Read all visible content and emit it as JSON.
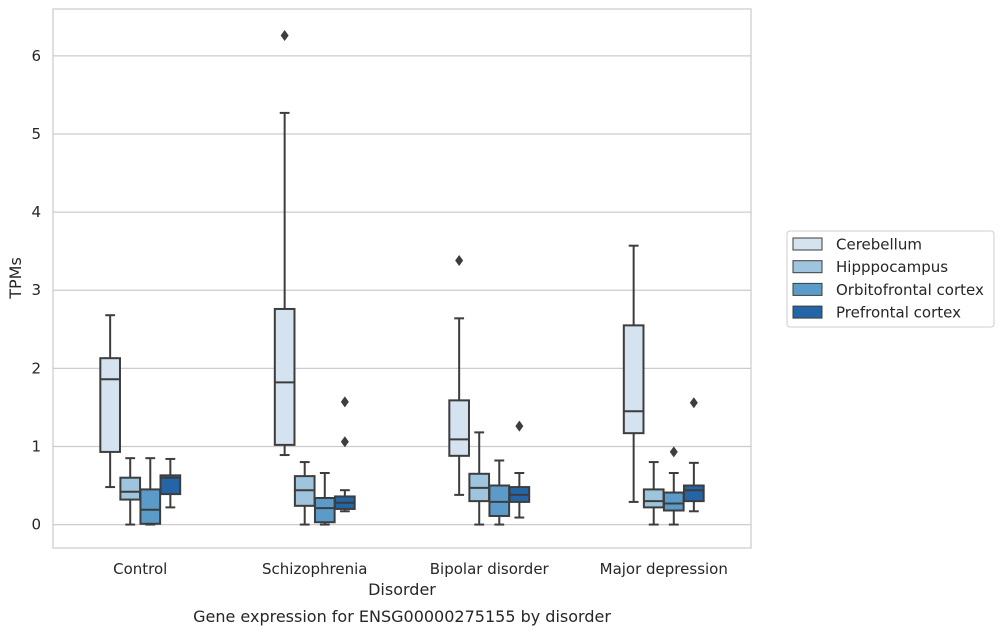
{
  "caption": "Gene expression for ENSG00000275155 by disorder",
  "chart_data": {
    "type": "box",
    "xlabel": "Disorder",
    "ylabel": "TPMs",
    "ylim": [
      -0.3,
      6.6
    ],
    "yticks": [
      0,
      1,
      2,
      3,
      4,
      5,
      6
    ],
    "grid": "horizontal",
    "legend_position": "right",
    "categories": [
      "Control",
      "Schizophrenia",
      "Bipolar disorder",
      "Major depression"
    ],
    "series": [
      {
        "name": "Cerebellum",
        "color": "#d5e3f1",
        "boxes": [
          {
            "whislo": 0.48,
            "q1": 0.93,
            "med": 1.86,
            "q3": 2.13,
            "whishi": 2.68,
            "fliers": []
          },
          {
            "whislo": 0.89,
            "q1": 1.02,
            "med": 1.82,
            "q3": 2.76,
            "whishi": 5.27,
            "fliers": [
              6.26
            ]
          },
          {
            "whislo": 0.38,
            "q1": 0.88,
            "med": 1.09,
            "q3": 1.59,
            "whishi": 2.64,
            "fliers": [
              3.38
            ]
          },
          {
            "whislo": 0.29,
            "q1": 1.17,
            "med": 1.45,
            "q3": 2.55,
            "whishi": 3.57,
            "fliers": []
          }
        ]
      },
      {
        "name": "Hipppocampus",
        "color": "#9fc5de",
        "boxes": [
          {
            "whislo": 0.0,
            "q1": 0.32,
            "med": 0.42,
            "q3": 0.6,
            "whishi": 0.85,
            "fliers": []
          },
          {
            "whislo": 0.0,
            "q1": 0.24,
            "med": 0.44,
            "q3": 0.62,
            "whishi": 0.8,
            "fliers": []
          },
          {
            "whislo": 0.0,
            "q1": 0.3,
            "med": 0.47,
            "q3": 0.65,
            "whishi": 1.18,
            "fliers": []
          },
          {
            "whislo": 0.0,
            "q1": 0.22,
            "med": 0.3,
            "q3": 0.45,
            "whishi": 0.8,
            "fliers": []
          }
        ]
      },
      {
        "name": "Orbitofrontal cortex",
        "color": "#5b9bc9",
        "boxes": [
          {
            "whislo": 0.0,
            "q1": 0.01,
            "med": 0.19,
            "q3": 0.45,
            "whishi": 0.85,
            "fliers": []
          },
          {
            "whislo": 0.0,
            "q1": 0.03,
            "med": 0.21,
            "q3": 0.34,
            "whishi": 0.66,
            "fliers": []
          },
          {
            "whislo": 0.0,
            "q1": 0.11,
            "med": 0.29,
            "q3": 0.5,
            "whishi": 0.82,
            "fliers": []
          },
          {
            "whislo": 0.0,
            "q1": 0.18,
            "med": 0.27,
            "q3": 0.41,
            "whishi": 0.66,
            "fliers": [
              0.93
            ]
          }
        ]
      },
      {
        "name": "Prefrontal cortex",
        "color": "#2465a7",
        "boxes": [
          {
            "whislo": 0.22,
            "q1": 0.39,
            "med": 0.6,
            "q3": 0.63,
            "whishi": 0.84,
            "fliers": []
          },
          {
            "whislo": 0.17,
            "q1": 0.2,
            "med": 0.28,
            "q3": 0.36,
            "whishi": 0.44,
            "fliers": [
              1.06,
              1.57
            ]
          },
          {
            "whislo": 0.09,
            "q1": 0.29,
            "med": 0.38,
            "q3": 0.48,
            "whishi": 0.66,
            "fliers": [
              1.26
            ]
          },
          {
            "whislo": 0.17,
            "q1": 0.3,
            "med": 0.44,
            "q3": 0.5,
            "whishi": 0.79,
            "fliers": [
              1.56
            ]
          }
        ]
      }
    ]
  }
}
